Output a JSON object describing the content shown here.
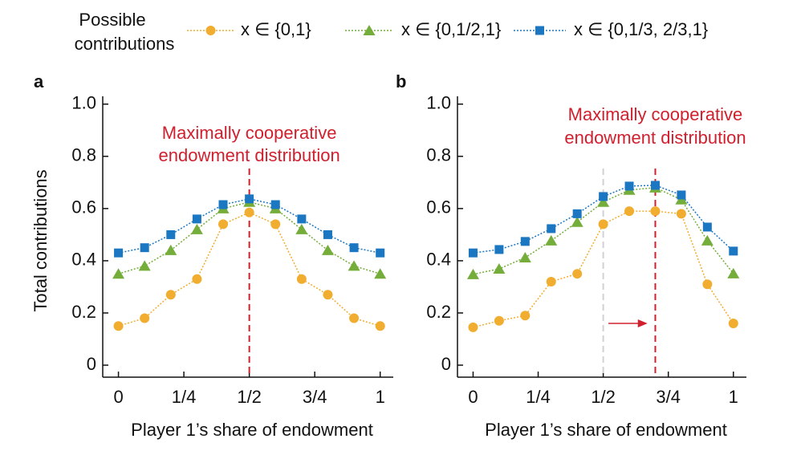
{
  "legend_title": [
    "Possible",
    "contributions"
  ],
  "chart_data": [
    {
      "type": "line",
      "label": "a",
      "xlabel": "Player 1’s share of endowment",
      "ylabel": "Total contributions",
      "xlim": [
        -0.06,
        1.05
      ],
      "ylim": [
        -0.046,
        1.03
      ],
      "xticks": [
        0,
        {
          "value": 0.25,
          "label": "1/4"
        },
        {
          "value": 0.5,
          "label": "1/2"
        },
        {
          "value": 0.75,
          "label": "3/4"
        },
        1
      ],
      "yticks": [
        0,
        0.2,
        0.4,
        0.6,
        0.8,
        {
          "value": 1,
          "label": "1.0"
        }
      ],
      "x": [
        0,
        0.1,
        0.2,
        0.3,
        0.4,
        0.5,
        0.6,
        0.7,
        0.8,
        0.9,
        1
      ],
      "series": [
        {
          "name": "x ∈ {0,1}",
          "color": "#f0ad30",
          "marker": "circle",
          "values": [
            0.15,
            0.18,
            0.27,
            0.33,
            0.54,
            0.585,
            0.54,
            0.33,
            0.27,
            0.18,
            0.15
          ]
        },
        {
          "name": "x ∈ {0,1/2,1}",
          "color": "#74ad3a",
          "marker": "triangle",
          "values": [
            0.35,
            0.38,
            0.44,
            0.52,
            0.6,
            0.625,
            0.6,
            0.52,
            0.44,
            0.38,
            0.35
          ]
        },
        {
          "name": "x ∈ {0,1/3, 2/3,1}",
          "color": "#1c77c3",
          "marker": "square",
          "values": [
            0.43,
            0.45,
            0.5,
            0.56,
            0.615,
            0.637,
            0.615,
            0.56,
            0.5,
            0.45,
            0.43
          ]
        }
      ],
      "vlines": [
        {
          "x": 0.5,
          "color": "#d0202e"
        }
      ],
      "annotation": {
        "text": [
          "Maximally cooperative",
          "endowment distribution"
        ],
        "color": "#d0202e"
      }
    },
    {
      "type": "line",
      "label": "b",
      "xlabel": "Player 1’s share of endowment",
      "xlim": [
        -0.06,
        1.05
      ],
      "ylim": [
        -0.046,
        1.03
      ],
      "xticks": [
        0,
        {
          "value": 0.25,
          "label": "1/4"
        },
        {
          "value": 0.5,
          "label": "1/2"
        },
        {
          "value": 0.75,
          "label": "3/4"
        },
        1
      ],
      "yticks": [
        0,
        0.2,
        0.4,
        0.6,
        0.8,
        {
          "value": 1,
          "label": "1.0"
        }
      ],
      "x": [
        0,
        0.1,
        0.2,
        0.3,
        0.4,
        0.5,
        0.6,
        0.7,
        0.8,
        0.9,
        1
      ],
      "series": [
        {
          "name": "x ∈ {0,1}",
          "color": "#f0ad30",
          "marker": "circle",
          "values": [
            0.145,
            0.17,
            0.19,
            0.32,
            0.35,
            0.54,
            0.59,
            0.59,
            0.58,
            0.31,
            0.16
          ]
        },
        {
          "name": "x ∈ {0,1/2,1}",
          "color": "#74ad3a",
          "marker": "triangle",
          "values": [
            0.348,
            0.369,
            0.412,
            0.477,
            0.548,
            0.625,
            0.671,
            0.68,
            0.634,
            0.477,
            0.351
          ]
        },
        {
          "name": "x ∈ {0,1/3, 2/3,1}",
          "color": "#1c77c3",
          "marker": "square",
          "values": [
            0.43,
            0.443,
            0.474,
            0.523,
            0.58,
            0.646,
            0.686,
            0.689,
            0.652,
            0.529,
            0.437
          ]
        }
      ],
      "vlines": [
        {
          "x": 0.5,
          "color": "#d3d0d6"
        },
        {
          "x": 0.7,
          "color": "#d0202e"
        }
      ],
      "arrow": {
        "from": 0.52,
        "to": 0.67,
        "y": 0.16,
        "color": "#d0202e"
      },
      "annotation": {
        "text": [
          "Maximally cooperative",
          "endowment distribution"
        ],
        "color": "#d0202e"
      }
    }
  ]
}
